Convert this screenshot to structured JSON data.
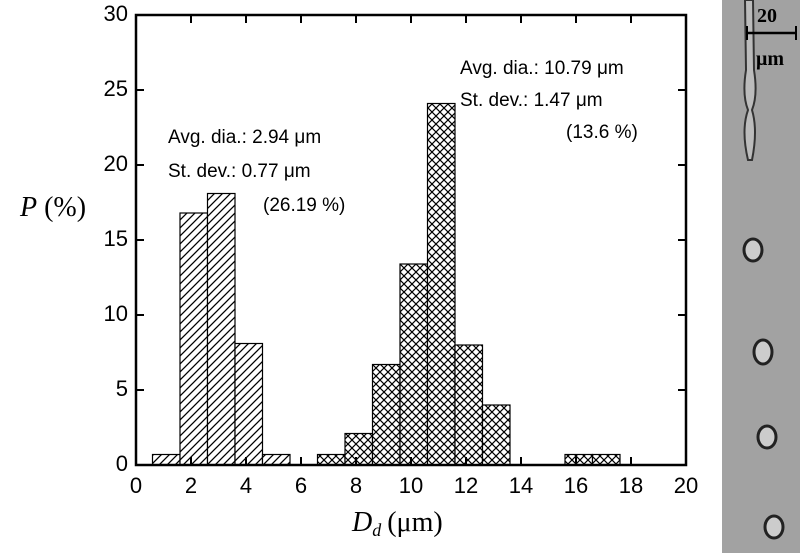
{
  "chart_data": {
    "type": "histogram",
    "series": [
      {
        "color": "#000000",
        "hatch": "diagonal",
        "bins": [
          0.6,
          1.6,
          2.6,
          3.6,
          4.6,
          5.6
        ],
        "values": [
          0.7,
          16.8,
          18.1,
          8.1,
          0.7
        ]
      },
      {
        "color": "#000000",
        "hatch": "cross",
        "bins": [
          6.6,
          7.6,
          8.6,
          9.6,
          10.6,
          11.6,
          12.6,
          13.6,
          14.6,
          15.6,
          16.6,
          17.6
        ],
        "values": [
          0.7,
          2.1,
          6.7,
          13.4,
          24.1,
          8.0,
          4.0,
          0,
          0,
          0.7,
          0.7
        ]
      }
    ],
    "xlim": [
      0,
      20
    ],
    "xticks": [
      0,
      2,
      4,
      6,
      8,
      10,
      12,
      14,
      16,
      18,
      20
    ],
    "ylim": [
      0,
      30
    ],
    "yticks": [
      0,
      5,
      10,
      15,
      20,
      25,
      30
    ],
    "xlabel": {
      "symbol": "D",
      "subscript": "d",
      "unit": "(μm)"
    },
    "ylabel": {
      "symbol": "P",
      "unit": "(%)"
    },
    "annotations": [
      "Avg. dia.: 2.94 μm",
      "St. dev.: 0.77 μm",
      "(26.19 %)",
      "Avg. dia.: 10.79 μm",
      "St. dev.: 1.47 μm",
      "(13.6 %)"
    ]
  },
  "image": {
    "scale_value": "20",
    "scale_unit": "μm"
  }
}
